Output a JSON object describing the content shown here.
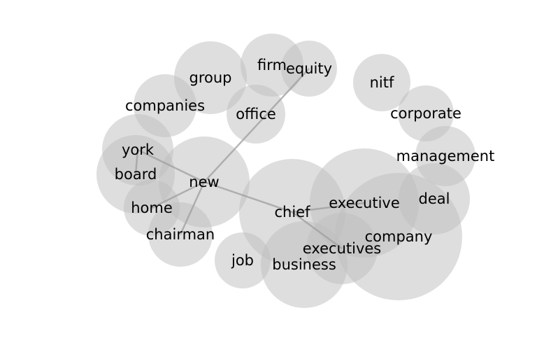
{
  "diagram": {
    "type": "word-bubble-network",
    "bubble_color": "#bdbdbd",
    "link_color": "#9e9e9e",
    "text_color": "#000000",
    "words": [
      {
        "id": "firm",
        "label": "firm"
      },
      {
        "id": "equity",
        "label": "equity"
      },
      {
        "id": "group",
        "label": "group"
      },
      {
        "id": "office",
        "label": "office"
      },
      {
        "id": "companies",
        "label": "companies"
      },
      {
        "id": "nitf",
        "label": "nitf"
      },
      {
        "id": "corporate",
        "label": "corporate"
      },
      {
        "id": "management",
        "label": "management"
      },
      {
        "id": "york",
        "label": "york"
      },
      {
        "id": "board",
        "label": "board"
      },
      {
        "id": "new",
        "label": "new"
      },
      {
        "id": "home",
        "label": "home"
      },
      {
        "id": "chairman",
        "label": "chairman"
      },
      {
        "id": "deal",
        "label": "deal"
      },
      {
        "id": "executive",
        "label": "executive"
      },
      {
        "id": "chief",
        "label": "chief"
      },
      {
        "id": "company",
        "label": "company"
      },
      {
        "id": "executives",
        "label": "executives"
      },
      {
        "id": "job",
        "label": "job"
      },
      {
        "id": "business",
        "label": "business"
      }
    ],
    "links": [
      [
        "york",
        "board"
      ],
      [
        "york",
        "new"
      ],
      [
        "new",
        "home"
      ],
      [
        "new",
        "chairman"
      ],
      [
        "new",
        "equity"
      ],
      [
        "new",
        "chief"
      ],
      [
        "chief",
        "executive"
      ],
      [
        "chief",
        "executives"
      ]
    ]
  }
}
